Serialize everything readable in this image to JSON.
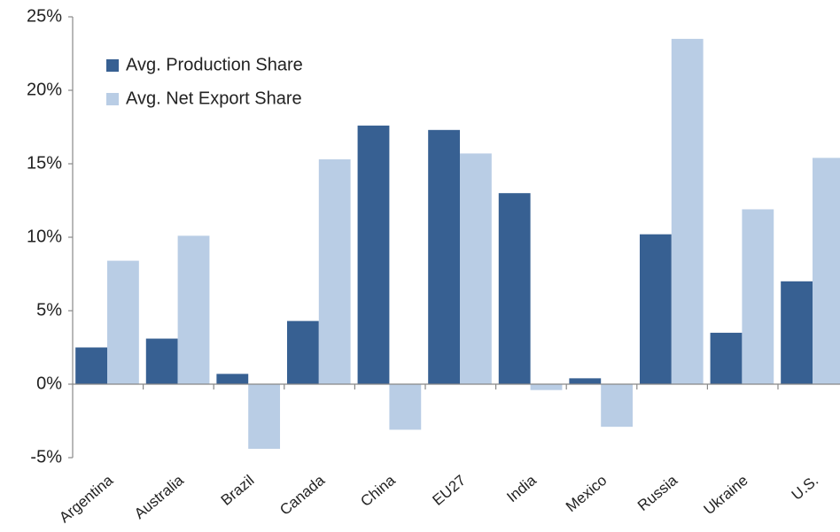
{
  "chart_data": {
    "type": "bar",
    "categories": [
      "Argentina",
      "Australia",
      "Brazil",
      "Canada",
      "China",
      "EU27",
      "India",
      "Mexico",
      "Russia",
      "Ukraine",
      "U.S."
    ],
    "series": [
      {
        "name": "Avg. Production Share",
        "color": "#376092",
        "values": [
          2.5,
          3.1,
          0.7,
          4.3,
          17.6,
          17.3,
          13.0,
          0.4,
          10.2,
          3.5,
          7.0
        ]
      },
      {
        "name": "Avg. Net Export Share",
        "color": "#b9cde5",
        "values": [
          8.4,
          10.1,
          -4.4,
          15.3,
          -3.1,
          15.7,
          -0.4,
          -2.9,
          23.5,
          11.9,
          15.4
        ]
      }
    ],
    "ylim": [
      -5,
      25
    ],
    "yticks": [
      {
        "value": -5,
        "label": "-5%"
      },
      {
        "value": 0,
        "label": "0%"
      },
      {
        "value": 5,
        "label": "5%"
      },
      {
        "value": 10,
        "label": "10%"
      },
      {
        "value": 15,
        "label": "15%"
      },
      {
        "value": 20,
        "label": "20%"
      },
      {
        "value": 25,
        "label": "25%"
      }
    ],
    "legend": "upper left",
    "grid": false
  }
}
